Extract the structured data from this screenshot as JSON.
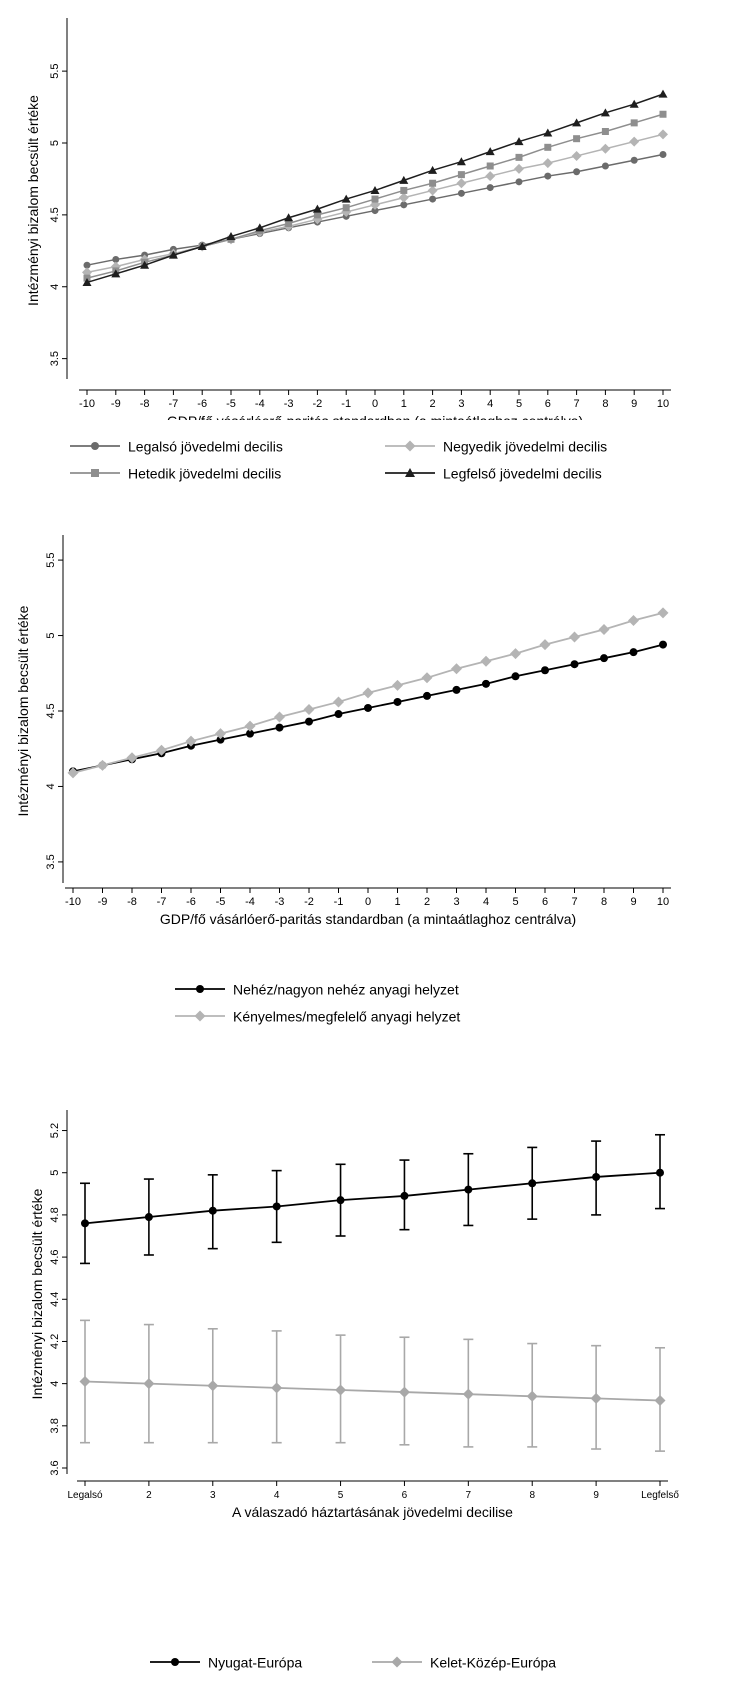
{
  "chart_data": [
    {
      "type": "line",
      "title": "",
      "xlabel": "GDP/fő vásárlóerő-paritás standardban (a mintaátlaghoz centrálva)",
      "ylabel": "Intézményi bizalom becsült értéke",
      "x": [
        -10,
        -9,
        -8,
        -7,
        -6,
        -5,
        -4,
        -3,
        -2,
        -1,
        0,
        1,
        2,
        3,
        4,
        5,
        6,
        7,
        8,
        9,
        10
      ],
      "xticks": [
        "-10",
        "-9",
        "-8",
        "-7",
        "-6",
        "-5",
        "-4",
        "-3",
        "-2",
        "-1",
        "0",
        "1",
        "2",
        "3",
        "4",
        "5",
        "6",
        "7",
        "8",
        "9",
        "10"
      ],
      "ylim": [
        3.4,
        5.8
      ],
      "yticks": [
        "3.5",
        "4",
        "4.5",
        "5",
        "5.5"
      ],
      "grid": false,
      "legend_position": "bottom",
      "series": [
        {
          "name": "Legalsó jövedelmi decilis",
          "color": "#6b6b6b",
          "marker": "circle",
          "values": [
            4.15,
            4.19,
            4.22,
            4.26,
            4.29,
            4.33,
            4.37,
            4.41,
            4.45,
            4.49,
            4.53,
            4.57,
            4.61,
            4.65,
            4.69,
            4.73,
            4.77,
            4.8,
            4.84,
            4.88,
            4.92
          ]
        },
        {
          "name": "Negyedik jövedelmi decilis",
          "color": "#b4b4b4",
          "marker": "diamond",
          "values": [
            4.1,
            4.14,
            4.19,
            4.23,
            4.28,
            4.33,
            4.38,
            4.42,
            4.47,
            4.52,
            4.57,
            4.62,
            4.67,
            4.72,
            4.77,
            4.82,
            4.86,
            4.91,
            4.96,
            5.01,
            5.06
          ]
        },
        {
          "name": "Hetedik jövedelmi decilis",
          "color": "#8e8e8e",
          "marker": "square",
          "values": [
            4.06,
            4.11,
            4.17,
            4.22,
            4.28,
            4.33,
            4.39,
            4.44,
            4.5,
            4.55,
            4.61,
            4.67,
            4.72,
            4.78,
            4.84,
            4.9,
            4.97,
            5.03,
            5.08,
            5.14,
            5.2
          ]
        },
        {
          "name": "Legfelső jövedelmi decilis",
          "color": "#1e1e1e",
          "marker": "triangle",
          "values": [
            4.03,
            4.09,
            4.15,
            4.22,
            4.28,
            4.35,
            4.41,
            4.48,
            4.54,
            4.61,
            4.67,
            4.74,
            4.81,
            4.87,
            4.94,
            5.01,
            5.07,
            5.14,
            5.21,
            5.27,
            5.34
          ]
        }
      ]
    },
    {
      "type": "line",
      "title": "",
      "xlabel": "GDP/fő vásárlóerő-paritás standardban (a mintaátlaghoz centrálva)",
      "ylabel": "Intézményi bizalom becsült értéke",
      "x": [
        -10,
        -9,
        -8,
        -7,
        -6,
        -5,
        -4,
        -3,
        -2,
        -1,
        0,
        1,
        2,
        3,
        4,
        5,
        6,
        7,
        8,
        9,
        10
      ],
      "xticks": [
        "-10",
        "-9",
        "-8",
        "-7",
        "-6",
        "-5",
        "-4",
        "-3",
        "-2",
        "-1",
        "0",
        "1",
        "2",
        "3",
        "4",
        "5",
        "6",
        "7",
        "8",
        "9",
        "10"
      ],
      "ylim": [
        3.4,
        5.6
      ],
      "yticks": [
        "3.5",
        "4",
        "4.5",
        "5",
        "5.5"
      ],
      "grid": false,
      "legend_position": "bottom",
      "series": [
        {
          "name": "Nehéz/nagyon nehéz anyagi helyzet",
          "color": "#000000",
          "marker": "circle",
          "values": [
            4.1,
            4.14,
            4.18,
            4.22,
            4.27,
            4.31,
            4.35,
            4.39,
            4.43,
            4.48,
            4.52,
            4.56,
            4.6,
            4.64,
            4.68,
            4.73,
            4.77,
            4.81,
            4.85,
            4.89,
            4.94
          ]
        },
        {
          "name": "Kényelmes/megfelelő anyagi helyzet",
          "color": "#b4b4b4",
          "marker": "diamond",
          "values": [
            4.09,
            4.14,
            4.19,
            4.24,
            4.3,
            4.35,
            4.4,
            4.46,
            4.51,
            4.56,
            4.62,
            4.67,
            4.72,
            4.78,
            4.83,
            4.88,
            4.94,
            4.99,
            5.04,
            5.1,
            5.15
          ]
        }
      ]
    },
    {
      "type": "line",
      "title": "",
      "xlabel": "A válaszadó háztartásának jövedelmi decilise",
      "ylabel": "Intézményi bizalom becsült értéke",
      "categories": [
        "Legalsó",
        "2",
        "3",
        "4",
        "5",
        "6",
        "7",
        "8",
        "9",
        "Legfelső"
      ],
      "ylim": [
        3.6,
        5.25
      ],
      "yticks": [
        "3.6",
        "3.8",
        "4",
        "4.2",
        "4.4",
        "4.6",
        "4.8",
        "5",
        "5.2"
      ],
      "grid": false,
      "legend_position": "bottom",
      "error_bars": true,
      "series": [
        {
          "name": "Nyugat-Európa",
          "color": "#000000",
          "marker": "circle",
          "values": [
            4.76,
            4.79,
            4.82,
            4.84,
            4.87,
            4.89,
            4.92,
            4.95,
            4.98,
            5.0
          ],
          "lower": [
            4.57,
            4.61,
            4.64,
            4.67,
            4.7,
            4.73,
            4.75,
            4.78,
            4.8,
            4.83
          ],
          "upper": [
            4.95,
            4.97,
            4.99,
            5.01,
            5.04,
            5.06,
            5.09,
            5.12,
            5.15,
            5.18
          ]
        },
        {
          "name": "Kelet-Közép-Európa",
          "color": "#a8a8a8",
          "marker": "diamond",
          "values": [
            4.01,
            4.0,
            3.99,
            3.98,
            3.97,
            3.96,
            3.95,
            3.94,
            3.93,
            3.92
          ],
          "lower": [
            3.72,
            3.72,
            3.72,
            3.72,
            3.72,
            3.71,
            3.7,
            3.7,
            3.69,
            3.68
          ],
          "upper": [
            4.3,
            4.28,
            4.26,
            4.25,
            4.23,
            4.22,
            4.21,
            4.19,
            4.18,
            4.17
          ]
        }
      ]
    }
  ]
}
